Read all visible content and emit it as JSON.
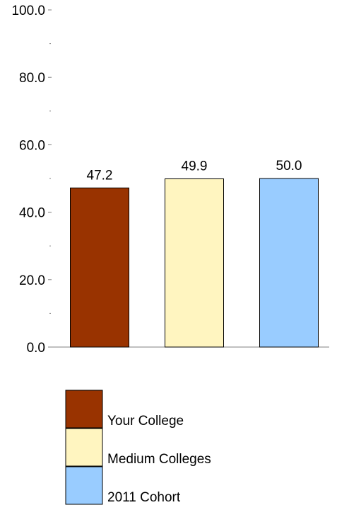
{
  "chart_data": {
    "type": "bar",
    "title": "",
    "xlabel": "",
    "ylabel": "",
    "ylim": [
      0,
      100
    ],
    "y_ticks": [
      {
        "value": 0,
        "label": "0.0"
      },
      {
        "value": 20,
        "label": "20.0"
      },
      {
        "value": 40,
        "label": "40.0"
      },
      {
        "value": 60,
        "label": "60.0"
      },
      {
        "value": 80,
        "label": "80.0"
      },
      {
        "value": 100,
        "label": "100.0"
      }
    ],
    "y_minor_ticks": [
      10,
      30,
      50,
      70,
      90
    ],
    "grid": false,
    "legend_position": "bottom",
    "series": [
      {
        "name": "Your College",
        "value": 47.2,
        "value_label": "47.2",
        "color": "#993300"
      },
      {
        "name": "Medium Colleges",
        "value": 49.9,
        "value_label": "49.9",
        "color": "#FFF5C0"
      },
      {
        "name": "2011 Cohort",
        "value": 50.0,
        "value_label": "50.0",
        "color": "#99CCFF"
      }
    ]
  }
}
